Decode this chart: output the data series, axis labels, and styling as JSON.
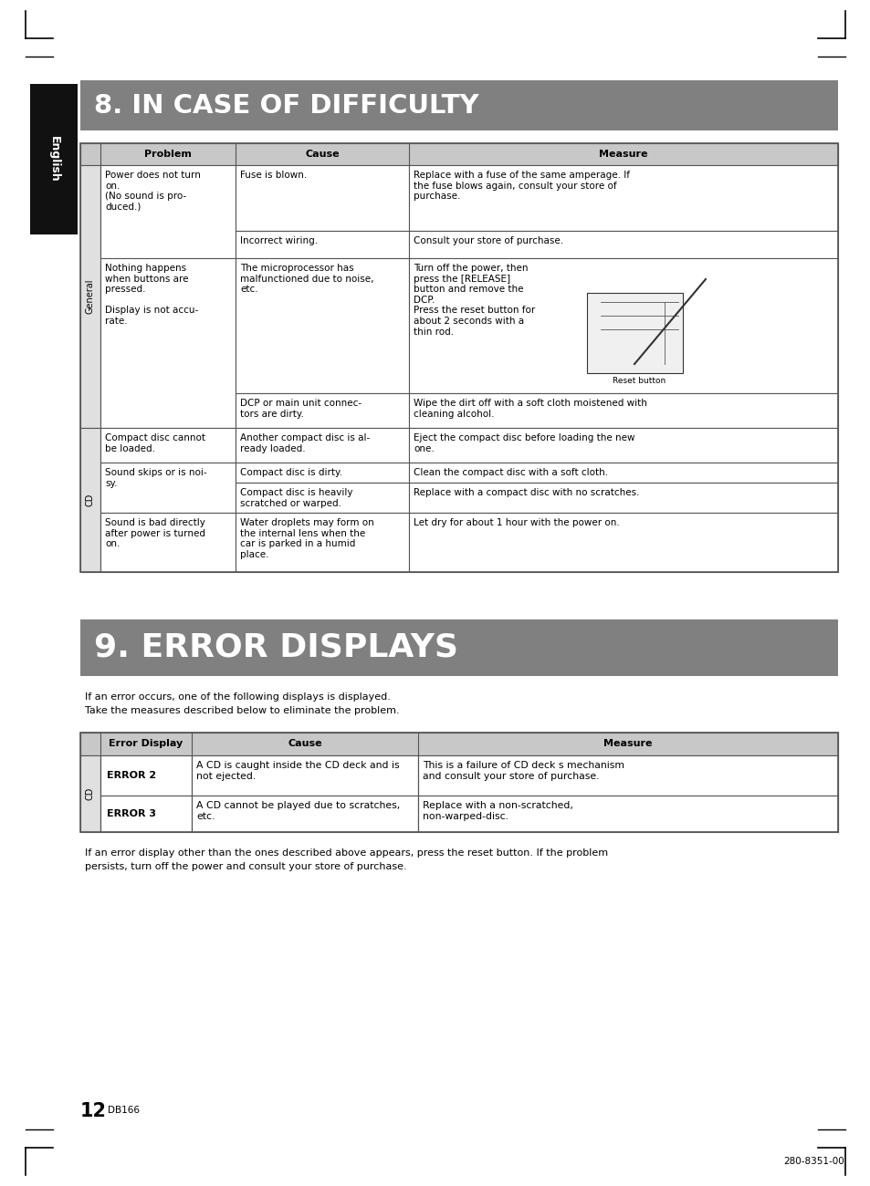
{
  "title8": "8. IN CASE OF DIFFICULTY",
  "title9": "9. ERROR DISPLAYS",
  "bg_color": "#ffffff",
  "header_bg": "#808080",
  "header_text_color": "#ffffff",
  "table_header_bg": "#c8c8c8",
  "table_border_color": "#555555",
  "english_tab_bg": "#111111",
  "english_tab_color": "#ffffff",
  "page_number": "12",
  "model": "DB166",
  "doc_number": "280-8351-00",
  "intro_text9_line1": "If an error occurs, one of the following displays is displayed.",
  "intro_text9_line2": "Take the measures described below to eliminate the problem.",
  "footer_line1": "If an error display other than the ones described above appears, press the reset button. If the problem",
  "footer_line2": "persists, turn off the power and consult your store of purchase."
}
